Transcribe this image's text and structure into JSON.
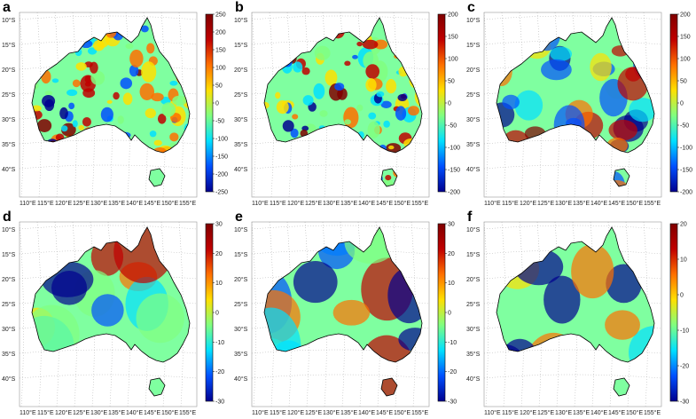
{
  "figure": {
    "panels": [
      {
        "id": "a",
        "letter": "a",
        "lat_labels": [
          "10°S",
          "15°S",
          "20°S",
          "25°S",
          "30°S",
          "35°S",
          "40°S"
        ],
        "lon_labels": [
          "110°E",
          "115°E",
          "120°E",
          "125°E",
          "130°E",
          "135°E",
          "140°E",
          "145°E",
          "150°E",
          "155°E"
        ],
        "colorbar": {
          "min": -250,
          "max": 250,
          "ticks": [
            "250",
            "200",
            "150",
            "100",
            "50",
            "0",
            "-50",
            "-100",
            "-150",
            "-200",
            "-250"
          ]
        },
        "style": "noisy"
      },
      {
        "id": "b",
        "letter": "b",
        "lat_labels": [
          "10°S",
          "15°S",
          "20°S",
          "25°S",
          "30°S",
          "35°S",
          "40°S"
        ],
        "lon_labels": [
          "110°E",
          "115°E",
          "120°E",
          "125°E",
          "130°E",
          "135°E",
          "140°E",
          "145°E",
          "150°E",
          "155°E"
        ],
        "colorbar": {
          "min": -200,
          "max": 200,
          "ticks": [
            "200",
            "150",
            "100",
            "50",
            "0",
            "-50",
            "-100",
            "-150",
            "-200"
          ]
        },
        "style": "noisy"
      },
      {
        "id": "c",
        "letter": "c",
        "lat_labels": [
          "10°S",
          "15°S",
          "20°S",
          "25°S",
          "30°S",
          "35°S",
          "40°S"
        ],
        "lon_labels": [
          "110°E",
          "115°E",
          "120°E",
          "125°E",
          "130°E",
          "135°E",
          "140°E",
          "145°E",
          "150°E",
          "155°E"
        ],
        "colorbar": {
          "min": -200,
          "max": 200,
          "ticks": [
            "200",
            "150",
            "100",
            "50",
            "0",
            "-50",
            "-100",
            "-150",
            "-200"
          ]
        },
        "style": "smooth"
      },
      {
        "id": "d",
        "letter": "d",
        "lat_labels": [
          "10°S",
          "15°S",
          "20°S",
          "25°S",
          "30°S",
          "35°S",
          "40°S"
        ],
        "lon_labels": [
          "110°E",
          "115°E",
          "120°E",
          "125°E",
          "130°E",
          "135°E",
          "140°E",
          "145°E",
          "150°E",
          "155°E"
        ],
        "colorbar": {
          "min": -30,
          "max": 30,
          "ticks": [
            "30",
            "20",
            "10",
            "0",
            "-10",
            "-20",
            "-30"
          ]
        },
        "style": "blob"
      },
      {
        "id": "e",
        "letter": "e",
        "lat_labels": [
          "10°S",
          "15°S",
          "20°S",
          "25°S",
          "30°S",
          "35°S",
          "40°S"
        ],
        "lon_labels": [
          "110°E",
          "115°E",
          "120°E",
          "125°E",
          "130°E",
          "135°E",
          "140°E",
          "145°E",
          "150°E",
          "155°E"
        ],
        "colorbar": {
          "min": -30,
          "max": 30,
          "ticks": [
            "30",
            "20",
            "10",
            "0",
            "-10",
            "-20",
            "-30"
          ]
        },
        "style": "blob"
      },
      {
        "id": "f",
        "letter": "f",
        "lat_labels": [
          "10°S",
          "15°S",
          "20°S",
          "25°S",
          "30°S",
          "35°S",
          "40°S"
        ],
        "lon_labels": [
          "110°E",
          "115°E",
          "120°E",
          "125°E",
          "130°E",
          "135°E",
          "140°E",
          "145°E",
          "150°E",
          "155°E"
        ],
        "colorbar": {
          "min": -30,
          "max": 20,
          "ticks": [
            "20",
            "10",
            "0",
            "-10",
            "-20",
            "-30"
          ]
        },
        "style": "blob"
      }
    ],
    "colors": {
      "deep_blue": "#00008f",
      "blue": "#0050ff",
      "cyan": "#00e0ff",
      "green": "#80ff80",
      "yellow": "#ffe000",
      "orange": "#ff7000",
      "red": "#c00000",
      "dark_red": "#800000"
    }
  }
}
